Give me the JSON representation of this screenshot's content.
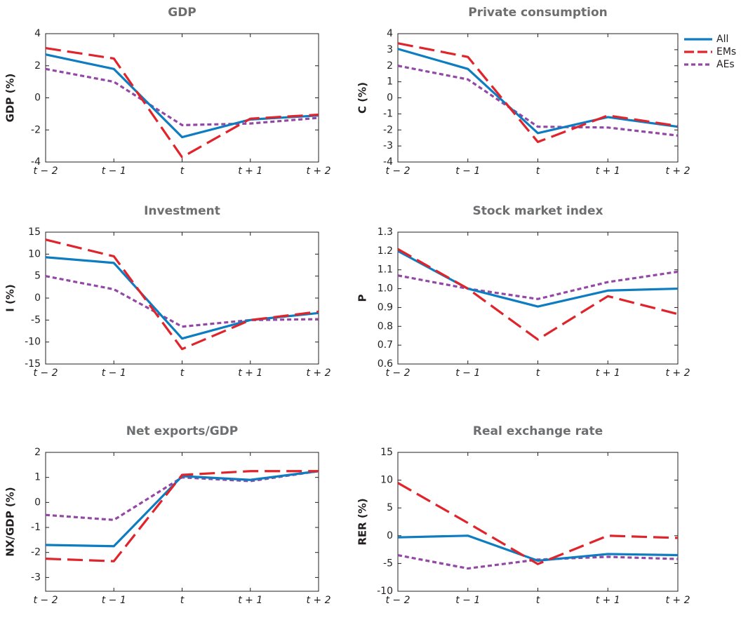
{
  "legend": [
    {
      "name": "All",
      "color": "#0d7cc0",
      "dash": "none"
    },
    {
      "name": "EMs",
      "color": "#e0242b",
      "dash": "22 9"
    },
    {
      "name": "AEs",
      "color": "#9448a6",
      "dash": "6 4"
    }
  ],
  "chart_data": [
    {
      "type": "line",
      "title": "GDP",
      "y_label": "GDP (%)",
      "categories": [
        "t − 2",
        "t − 1",
        "t",
        "t + 1",
        "t + 2"
      ],
      "series": [
        {
          "values": [
            2.7,
            1.8,
            -2.45,
            -1.35,
            -1.1
          ]
        },
        {
          "values": [
            3.1,
            2.45,
            -3.7,
            -1.3,
            -1.05
          ]
        },
        {
          "values": [
            1.8,
            1.0,
            -1.7,
            -1.6,
            -1.25
          ]
        }
      ],
      "ylim": [
        -4,
        4
      ],
      "yticks": [
        -4,
        -2,
        0,
        2,
        4
      ]
    },
    {
      "type": "line",
      "title": "Private consumption",
      "y_label": "C (%)",
      "categories": [
        "t − 2",
        "t − 1",
        "t",
        "t + 1",
        "t + 2"
      ],
      "series": [
        {
          "values": [
            3.05,
            1.8,
            -2.2,
            -1.2,
            -1.8
          ]
        },
        {
          "values": [
            3.4,
            2.55,
            -2.75,
            -1.1,
            -1.75
          ]
        },
        {
          "values": [
            2.0,
            1.15,
            -1.8,
            -1.85,
            -2.35
          ]
        }
      ],
      "ylim": [
        -4,
        4
      ],
      "yticks": [
        -4,
        -3,
        -2,
        -1,
        0,
        1,
        2,
        3,
        4
      ]
    },
    {
      "type": "line",
      "title": "Investment",
      "y_label": "I (%)",
      "categories": [
        "t − 2",
        "t − 1",
        "t",
        "t + 1",
        "t + 2"
      ],
      "series": [
        {
          "values": [
            9.3,
            8.0,
            -9.2,
            -5.0,
            -3.4
          ]
        },
        {
          "values": [
            13.3,
            9.5,
            -11.6,
            -5.0,
            -3.1
          ]
        },
        {
          "values": [
            5.0,
            2.0,
            -6.5,
            -5.0,
            -4.8
          ]
        }
      ],
      "ylim": [
        -15,
        15
      ],
      "yticks": [
        -15,
        -10,
        -5,
        0,
        5,
        10,
        15
      ]
    },
    {
      "type": "line",
      "title": "Stock market index",
      "y_label": "P",
      "categories": [
        "t − 2",
        "t − 1",
        "t",
        "t + 1",
        "t + 2"
      ],
      "series": [
        {
          "values": [
            1.2,
            1.0,
            0.905,
            0.99,
            1.0
          ]
        },
        {
          "values": [
            1.21,
            1.0,
            0.73,
            0.96,
            0.865
          ]
        },
        {
          "values": [
            1.07,
            1.0,
            0.945,
            1.035,
            1.09
          ]
        }
      ],
      "ylim": [
        0.6,
        1.3
      ],
      "yticks": [
        0.6,
        0.7,
        0.8,
        0.9,
        {
          "value": 1,
          "label": "1.0"
        },
        1.1,
        1.2,
        1.3
      ]
    },
    {
      "type": "line",
      "title": "Net  exports/GDP",
      "y_label": "NX/GDP (%)",
      "categories": [
        "t − 2",
        "t − 1",
        "t",
        "t + 1",
        "t + 2"
      ],
      "series": [
        {
          "values": [
            -1.7,
            -1.75,
            1.05,
            0.9,
            1.25
          ]
        },
        {
          "values": [
            -2.25,
            -2.35,
            1.1,
            1.25,
            1.25
          ]
        },
        {
          "values": [
            -0.5,
            -0.7,
            1.0,
            0.85,
            1.25
          ]
        }
      ],
      "ylim": [
        -3.55,
        2
      ],
      "yticks": [
        -3,
        -2,
        -1,
        0,
        1,
        2
      ]
    },
    {
      "type": "line",
      "title": "Real exchange rate",
      "y_label": "RER (%)",
      "categories": [
        "t − 2",
        "t − 1",
        "t",
        "t + 1",
        "t + 2"
      ],
      "series": [
        {
          "values": [
            -0.3,
            0,
            -4.5,
            -3.3,
            -3.5
          ]
        },
        {
          "values": [
            9.5,
            2.3,
            -5.1,
            0,
            -0.4
          ]
        },
        {
          "values": [
            -3.5,
            -5.9,
            -4.3,
            -3.8,
            -4.2
          ]
        }
      ],
      "ylim": [
        -10,
        15
      ],
      "yticks": [
        -10,
        -5,
        0,
        5,
        10,
        15
      ]
    }
  ]
}
